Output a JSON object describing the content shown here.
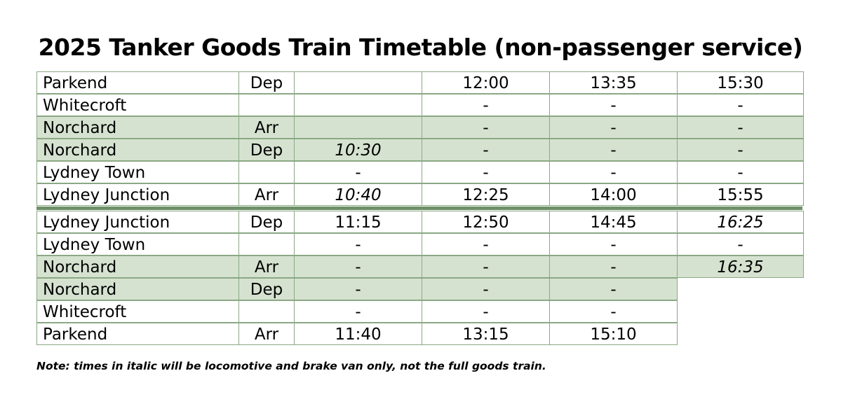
{
  "title": "2025 Tanker Goods Train Timetable (non-passenger service)",
  "colors": {
    "shaded_row": "#d6e2d0",
    "grid_border": "#8aa884",
    "divider": "#6e9068"
  },
  "outbound_rows": [
    {
      "station": "Parkend",
      "type": "Dep",
      "t1": "",
      "t2": "12:00",
      "t3": "13:35",
      "t4": "15:30",
      "shaded": false,
      "t1_italic": false,
      "t4_italic": false
    },
    {
      "station": "Whitecroft",
      "type": "",
      "t1": "",
      "t2": "-",
      "t3": "-",
      "t4": "-",
      "shaded": false,
      "t1_italic": false,
      "t4_italic": false
    },
    {
      "station": "Norchard",
      "type": "Arr",
      "t1": "",
      "t2": "-",
      "t3": "-",
      "t4": "-",
      "shaded": true,
      "t1_italic": false,
      "t4_italic": false
    },
    {
      "station": "Norchard",
      "type": "Dep",
      "t1": "10:30",
      "t2": "-",
      "t3": "-",
      "t4": "-",
      "shaded": true,
      "t1_italic": true,
      "t4_italic": false
    },
    {
      "station": "Lydney Town",
      "type": "",
      "t1": "-",
      "t2": "-",
      "t3": "-",
      "t4": "-",
      "shaded": false,
      "t1_italic": false,
      "t4_italic": false
    },
    {
      "station": "Lydney Junction",
      "type": "Arr",
      "t1": "10:40",
      "t2": "12:25",
      "t3": "14:00",
      "t4": "15:55",
      "shaded": false,
      "t1_italic": true,
      "t4_italic": false
    }
  ],
  "return_rows": [
    {
      "station": "Lydney Junction",
      "type": "Dep",
      "t1": "11:15",
      "t2": "12:50",
      "t3": "14:45",
      "t4": "16:25",
      "shaded": false,
      "t1_italic": false,
      "t4_italic": true,
      "t4_present": true
    },
    {
      "station": "Lydney Town",
      "type": "",
      "t1": "-",
      "t2": "-",
      "t3": "-",
      "t4": "-",
      "shaded": false,
      "t1_italic": false,
      "t4_italic": false,
      "t4_present": true
    },
    {
      "station": "Norchard",
      "type": "Arr",
      "t1": "-",
      "t2": "-",
      "t3": "-",
      "t4": "16:35",
      "shaded": true,
      "t1_italic": false,
      "t4_italic": true,
      "t4_present": true
    },
    {
      "station": "Norchard",
      "type": "Dep",
      "t1": "-",
      "t2": "-",
      "t3": "-",
      "t4": "",
      "shaded": true,
      "t1_italic": false,
      "t4_italic": false,
      "t4_present": false
    },
    {
      "station": "Whitecroft",
      "type": "",
      "t1": "-",
      "t2": "-",
      "t3": "-",
      "t4": "",
      "shaded": false,
      "t1_italic": false,
      "t4_italic": false,
      "t4_present": false
    },
    {
      "station": "Parkend",
      "type": "Arr",
      "t1": "11:40",
      "t2": "13:15",
      "t3": "15:10",
      "t4": "",
      "shaded": false,
      "t1_italic": false,
      "t4_italic": false,
      "t4_present": false
    }
  ],
  "note": "Note: times in italic will be locomotive and brake van only, not the full goods train."
}
